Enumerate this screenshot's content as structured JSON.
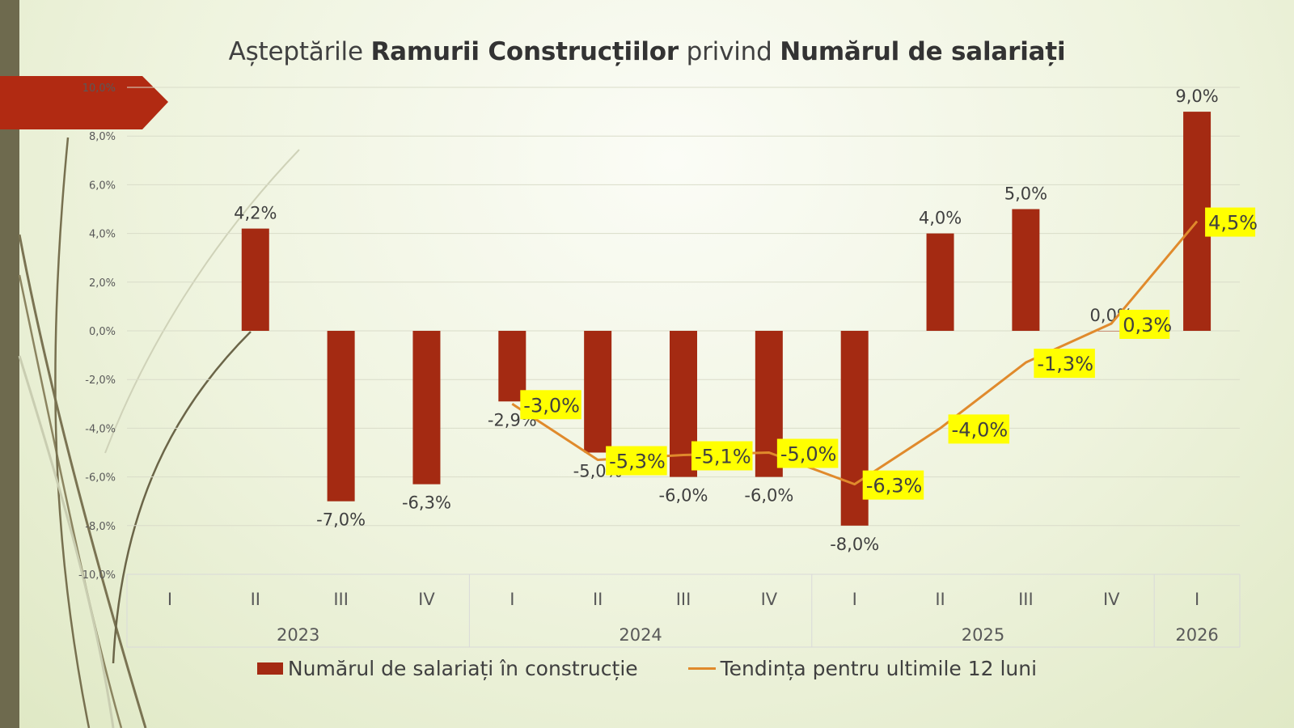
{
  "title": {
    "part1": "Așteptările ",
    "part2": "Ramurii Construcțiilor",
    "part3": " privind ",
    "part4": "Numărul de salariați"
  },
  "colors": {
    "bar": "#A42A12",
    "line": "#E08A2C",
    "label_highlight": "#FFFF00",
    "accent_banner": "#B12A12",
    "side_strip": "#6E6A4E"
  },
  "chart_data": {
    "type": "bar",
    "title": "Așteptările Ramurii Construcțiilor privind Numărul de salariați",
    "categories": [
      "I",
      "II",
      "III",
      "IV",
      "I",
      "II",
      "III",
      "IV",
      "I",
      "II",
      "III",
      "IV",
      "I"
    ],
    "category_groups": [
      {
        "label": "2023",
        "count": 4
      },
      {
        "label": "2024",
        "count": 4
      },
      {
        "label": "2025",
        "count": 4
      },
      {
        "label": "2026",
        "count": 1
      }
    ],
    "ylim": [
      -10,
      10
    ],
    "yticks": [
      10,
      8,
      6,
      4,
      2,
      0,
      -2,
      -4,
      -6,
      -8,
      -10
    ],
    "ytick_labels": [
      "10,0%",
      "8,0%",
      "6,0%",
      "4,0%",
      "2,0%",
      "0,0%",
      "-2,0%",
      "-4,0%",
      "-6,0%",
      "-8,0%",
      "-10,0%"
    ],
    "grid": true,
    "legend_position": "bottom",
    "series": [
      {
        "name": "Numărul de salariați în construcție",
        "type": "bar",
        "values": [
          null,
          4.2,
          -7.0,
          -6.3,
          -2.9,
          -5.0,
          -6.0,
          -6.0,
          -8.0,
          4.0,
          5.0,
          0.0,
          9.0
        ],
        "labels": [
          "",
          "4,2%",
          "-7,0%",
          "-6,3%",
          "-2,9%",
          "-5,0%",
          "-6,0%",
          "-6,0%",
          "-8,0%",
          "4,0%",
          "5,0%",
          "0,0%",
          "9,0%"
        ]
      },
      {
        "name": "Tendința  pentru ultimile 12 luni",
        "type": "line",
        "values": [
          null,
          null,
          null,
          null,
          -3.0,
          -5.3,
          -5.1,
          -5.0,
          -6.3,
          -4.0,
          -1.3,
          0.3,
          4.5
        ],
        "labels": [
          "",
          "",
          "",
          "",
          "-3,0%",
          "-5,3%",
          "-5,1%",
          "-5,0%",
          "-6,3%",
          "-4,0%",
          "-1,3%",
          "0,3%",
          "4,5%"
        ]
      }
    ]
  },
  "legend": {
    "bar_label": "Numărul de salariați în construcție",
    "line_label": "Tendința  pentru ultimile 12 luni"
  }
}
